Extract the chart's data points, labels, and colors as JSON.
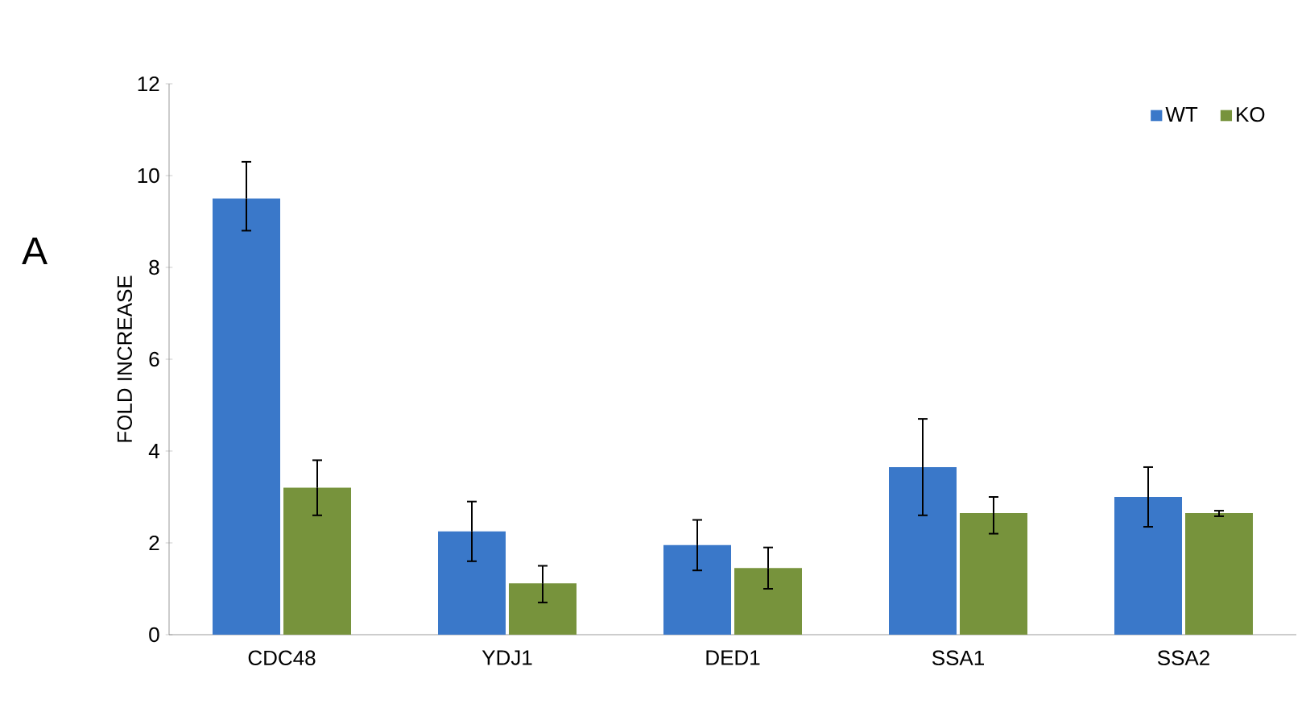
{
  "chart_data": {
    "type": "bar",
    "ylabel": "FOLD INCREASE",
    "annotations": [
      "A"
    ],
    "categories": [
      "CDC48",
      "YDJ1",
      "DED1",
      "SSA1",
      "SSA2"
    ],
    "series": [
      {
        "name": "WT",
        "color": "#3a78c9",
        "values": [
          9.5,
          2.25,
          1.95,
          3.65,
          3.0
        ],
        "errors": [
          [
            8.8,
            10.3
          ],
          [
            1.6,
            2.9
          ],
          [
            1.4,
            2.5
          ],
          [
            2.6,
            4.7
          ],
          [
            2.35,
            3.65
          ]
        ]
      },
      {
        "name": "KO",
        "color": "#77933c",
        "values": [
          3.2,
          1.12,
          1.45,
          2.65,
          2.65
        ],
        "errors": [
          [
            2.6,
            3.8
          ],
          [
            0.7,
            1.5
          ],
          [
            1.0,
            1.9
          ],
          [
            2.2,
            3.0
          ],
          [
            2.58,
            2.7
          ]
        ]
      }
    ],
    "ylim": [
      0,
      12
    ],
    "yticks": [
      0,
      2,
      4,
      6,
      8,
      10,
      12
    ],
    "legend": "top right",
    "grid": false
  }
}
